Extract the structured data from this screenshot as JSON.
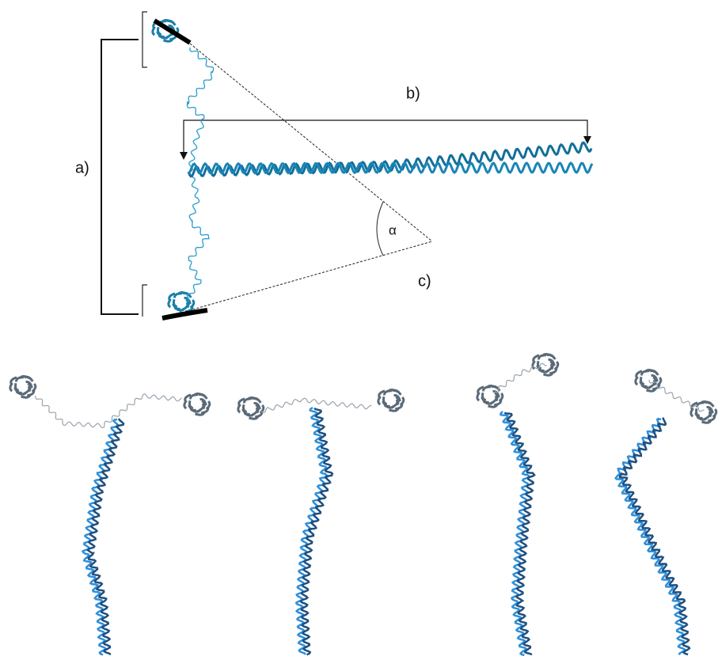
{
  "labels": {
    "a": "a)",
    "b": "b)",
    "c": "c)",
    "alpha": "α"
  }
}
